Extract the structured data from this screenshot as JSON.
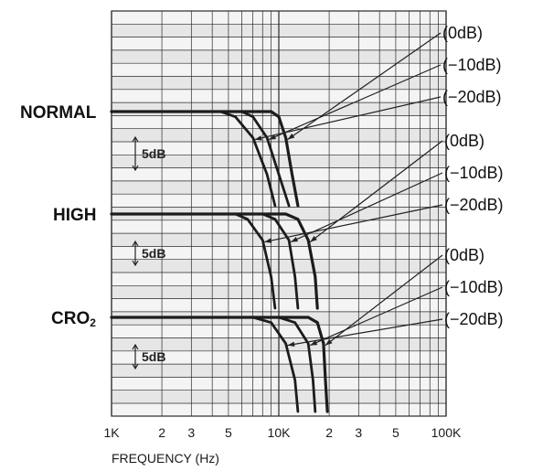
{
  "chart_data": {
    "type": "line",
    "x_scale": "log",
    "x_unit": "Hz",
    "xlim": [
      1000,
      100000
    ],
    "xlabel": "FREQUENCY (Hz)",
    "x_tick_labels": [
      "1K",
      "2",
      "3",
      "5",
      "10K",
      "2",
      "3",
      "5",
      "100K"
    ],
    "scale_bar": "5dB",
    "grid": true,
    "groups": [
      {
        "label": "NORMAL",
        "label_sub": "",
        "series": [
          {
            "name": "(0dB)",
            "flat_level_db": 0,
            "x": [
              1000,
              9000,
              10000,
              11000,
              12000,
              13000
            ],
            "y": [
              0,
              0,
              -1,
              -5,
              -12,
              -18
            ]
          },
          {
            "name": "(−10dB)",
            "flat_level_db": 0,
            "x": [
              1000,
              6000,
              7000,
              8500,
              10000,
              11500
            ],
            "y": [
              0,
              0,
              -1,
              -5,
              -12,
              -18
            ]
          },
          {
            "name": "(−20dB)",
            "flat_level_db": 0,
            "x": [
              1000,
              4500,
              5500,
              7000,
              8500,
              9500
            ],
            "y": [
              0,
              0,
              -1,
              -5,
              -12,
              -18
            ]
          }
        ]
      },
      {
        "label": "HIGH",
        "label_sub": "",
        "series": [
          {
            "name": "(0dB)",
            "flat_level_db": 0,
            "x": [
              1000,
              11000,
              13000,
              15000,
              16500,
              17000
            ],
            "y": [
              0,
              0,
              -1,
              -5,
              -12,
              -18
            ]
          },
          {
            "name": "(−10dB)",
            "flat_level_db": 0,
            "x": [
              1000,
              8000,
              9500,
              11500,
              12500,
              13000
            ],
            "y": [
              0,
              0,
              -1,
              -5,
              -12,
              -18
            ]
          },
          {
            "name": "(−20dB)",
            "flat_level_db": 0,
            "x": [
              1000,
              5500,
              6500,
              8000,
              9000,
              9500
            ],
            "y": [
              0,
              0,
              -1,
              -5,
              -12,
              -18
            ]
          }
        ]
      },
      {
        "label": "CRO",
        "label_sub": "2",
        "series": [
          {
            "name": "(0dB)",
            "flat_level_db": 0,
            "x": [
              1000,
              15000,
              17000,
              18500,
              19000,
              19500
            ],
            "y": [
              0,
              0,
              -1,
              -5,
              -12,
              -18
            ]
          },
          {
            "name": "(−10dB)",
            "flat_level_db": 0,
            "x": [
              1000,
              10000,
              12500,
              15000,
              16000,
              16500
            ],
            "y": [
              0,
              0,
              -1,
              -5,
              -12,
              -18
            ]
          },
          {
            "name": "(−20dB)",
            "flat_level_db": 0,
            "x": [
              1000,
              7000,
              9000,
              11000,
              12500,
              13000
            ],
            "y": [
              0,
              0,
              -1,
              -5,
              -12,
              -18
            ]
          }
        ]
      }
    ]
  },
  "colors": {
    "curve": "#1c1c1c",
    "grid": "#2a2a2a",
    "band_light": "#f4f4f4",
    "band_dark": "#e6e6e6"
  }
}
